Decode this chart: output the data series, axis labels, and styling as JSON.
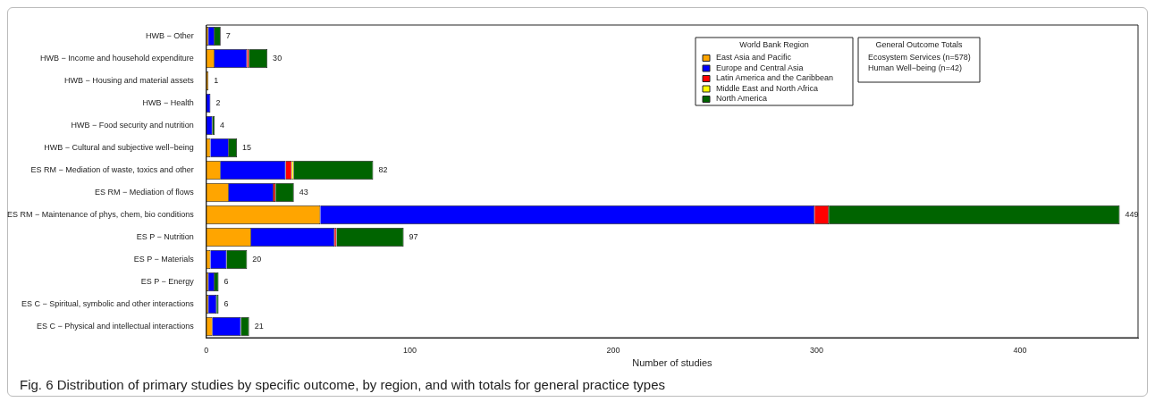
{
  "chart_data": {
    "type": "bar",
    "orientation": "horizontal",
    "stacked": true,
    "title": "Fig. 6  Distribution of primary studies by specific outcome, by region, and with totals for general practice types",
    "xlabel": "Number of studies",
    "legend_title": "World Bank Region",
    "legend": "top right",
    "grid": false,
    "categories": [
      "HWB − Other",
      "HWB − Income and household expenditure",
      "HWB − Housing and material assets",
      "HWB − Health",
      "HWB − Food security and nutrition",
      "HWB − Cultural and subjective well−being",
      "ES RM − Mediation of waste, toxics and other",
      "ES RM − Mediation of flows",
      "ES RM − Maintenance of phys, chem, bio conditions",
      "ES P − Nutrition",
      "ES P − Materials",
      "ES P − Energy",
      "ES C − Spiritual, symbolic and other interactions",
      "ES C − Physical and intellectual interactions"
    ],
    "series": [
      {
        "name": "East Asia and Pacific",
        "color": "#ffa500",
        "values": [
          1,
          4,
          1,
          0,
          0,
          2,
          7,
          11,
          56,
          22,
          2,
          1,
          1,
          3
        ]
      },
      {
        "name": "Europe and Central Asia",
        "color": "#0000ff",
        "values": [
          3,
          16,
          0,
          2,
          3,
          9,
          32,
          22,
          243,
          41,
          8,
          3,
          4,
          14
        ]
      },
      {
        "name": "Latin America and the Caribbean",
        "color": "#ff0000",
        "values": [
          0,
          1,
          0,
          0,
          0,
          0,
          3,
          1,
          7,
          1,
          0,
          0,
          0,
          0
        ]
      },
      {
        "name": "Middle East and North Africa",
        "color": "#ffff00",
        "values": [
          0,
          0,
          0,
          0,
          0,
          0,
          1,
          0,
          0,
          0,
          0,
          0,
          0,
          0
        ]
      },
      {
        "name": "North America",
        "color": "#006400",
        "values": [
          3,
          9,
          0,
          0,
          1,
          4,
          39,
          9,
          143,
          33,
          10,
          2,
          1,
          4
        ]
      }
    ],
    "totals": [
      "7",
      "30",
      "1",
      "2",
      "4",
      "15",
      "82",
      "43",
      "449",
      "97",
      "20",
      "6",
      "6",
      "21"
    ],
    "xlim": [
      0,
      458
    ],
    "xticks": [
      0,
      100,
      200,
      300,
      400
    ],
    "annotations": [
      "General Outcome Totals",
      "Ecosystem Services (n=578)",
      "Human Well−being (n=42)"
    ]
  }
}
